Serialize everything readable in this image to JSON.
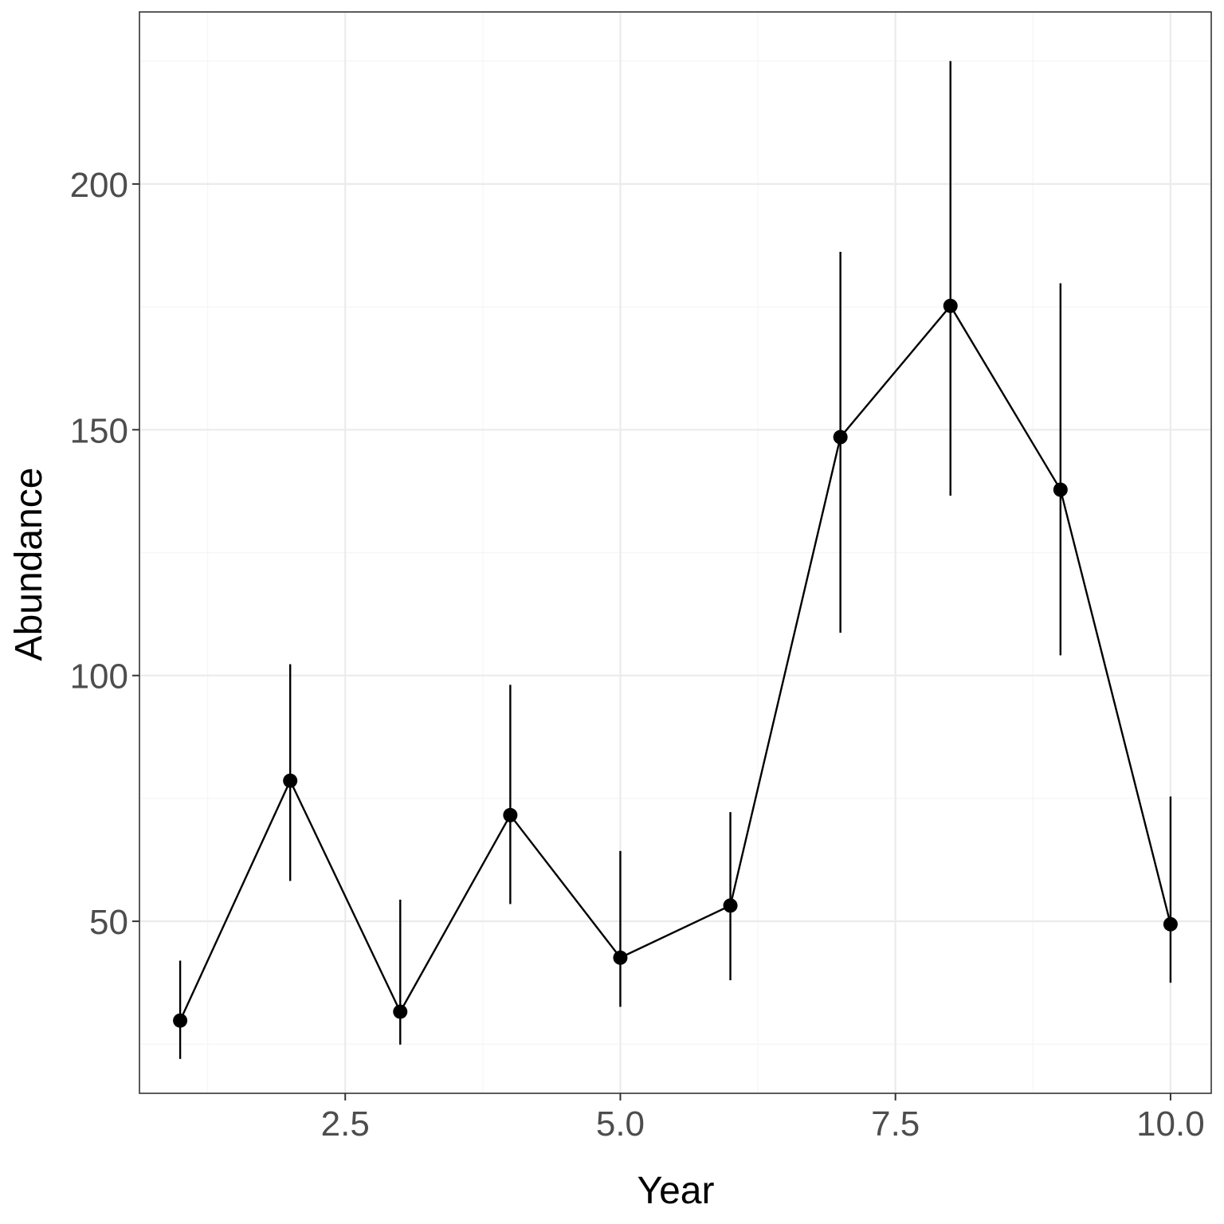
{
  "chart_data": {
    "type": "line",
    "xlabel": "Year",
    "ylabel": "Abundance",
    "xlim": [
      0.63,
      10.37
    ],
    "ylim": [
      15,
      235
    ],
    "x_ticks": [
      2.5,
      5.0,
      7.5,
      10.0
    ],
    "x_tick_labels": [
      "2.5",
      "5.0",
      "7.5",
      "10.0"
    ],
    "y_ticks": [
      50,
      100,
      150,
      200
    ],
    "y_tick_labels": [
      "50",
      "100",
      "150",
      "200"
    ],
    "x_minor_ticks": [
      1.25,
      3.75,
      6.25,
      8.75
    ],
    "y_minor_ticks": [
      25,
      75,
      125,
      175,
      225
    ],
    "grid": true,
    "series": [
      {
        "x": [
          1,
          2,
          3,
          4,
          5,
          6,
          7,
          8,
          9,
          10
        ],
        "values": [
          29.8,
          78.6,
          31.6,
          71.6,
          42.6,
          53.2,
          148.5,
          175.2,
          137.8,
          49.4
        ],
        "lower": [
          22.0,
          58.2,
          24.9,
          53.5,
          32.6,
          38.0,
          108.7,
          136.6,
          104.1,
          37.5
        ],
        "upper": [
          42.0,
          102.3,
          54.4,
          98.1,
          64.3,
          72.2,
          186.2,
          225.0,
          179.8,
          75.4
        ]
      }
    ]
  }
}
